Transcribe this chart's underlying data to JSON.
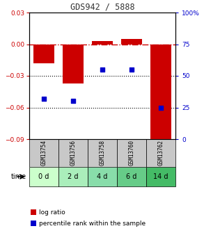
{
  "title": "GDS942 / 5888",
  "samples": [
    "GSM13754",
    "GSM13756",
    "GSM13758",
    "GSM13760",
    "GSM13762"
  ],
  "time_labels": [
    "0 d",
    "2 d",
    "4 d",
    "6 d",
    "14 d"
  ],
  "log_ratios": [
    -0.018,
    -0.037,
    0.003,
    0.005,
    -0.09
  ],
  "percentile_ranks": [
    32,
    30,
    55,
    55,
    25
  ],
  "ylim_left": [
    -0.09,
    0.03
  ],
  "ylim_right": [
    0,
    100
  ],
  "left_yticks": [
    0.03,
    0,
    -0.03,
    -0.06,
    -0.09
  ],
  "right_yticks": [
    100,
    75,
    50,
    25,
    0
  ],
  "bar_color": "#cc0000",
  "dot_color": "#0000cc",
  "zero_line_color": "#cc0000",
  "grid_color": "#333333",
  "title_color": "#333333",
  "left_tick_color": "#cc0000",
  "right_tick_color": "#0000cc",
  "sample_bg_color": "#c8c8c8",
  "time_bg_colors": [
    "#ccffcc",
    "#aaeebb",
    "#88ddaa",
    "#66cc88",
    "#44bb66"
  ],
  "legend_log_ratio": "log ratio",
  "legend_percentile": "percentile rank within the sample",
  "time_label": "time",
  "bar_width": 0.7,
  "fig_width": 2.93,
  "fig_height": 3.45,
  "dpi": 100
}
